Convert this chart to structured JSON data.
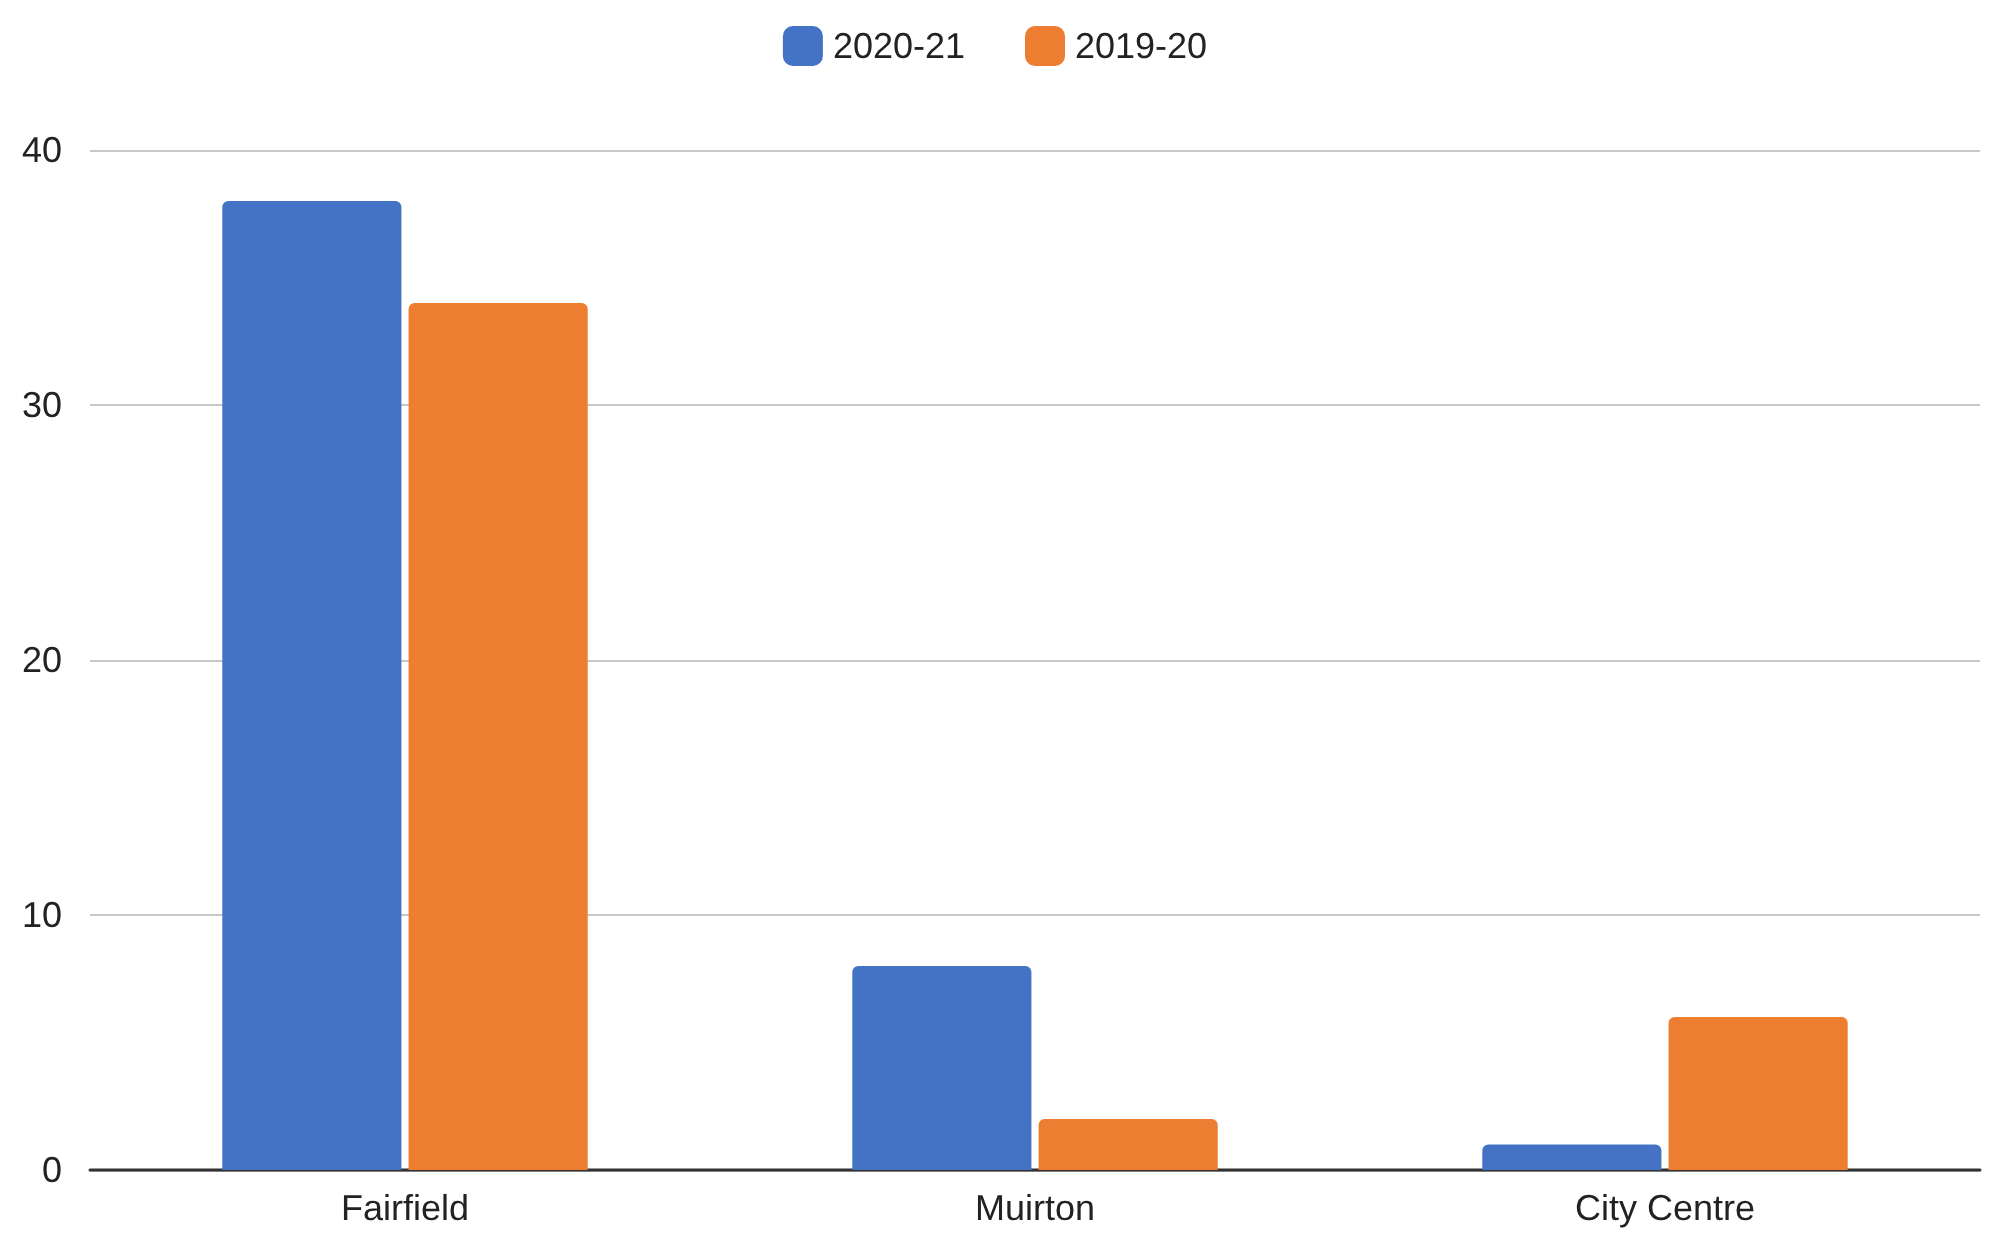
{
  "chart_data": {
    "type": "bar",
    "categories": [
      "Fairfield",
      "Muirton",
      "City Centre"
    ],
    "series": [
      {
        "name": "2020-21",
        "color": "#4472c4",
        "values": [
          38,
          8,
          1
        ]
      },
      {
        "name": "2019-20",
        "color": "#ed7d31",
        "values": [
          34,
          2,
          6
        ]
      }
    ],
    "ylim": [
      0,
      40
    ],
    "yticks": [
      0,
      10,
      20,
      30,
      40
    ],
    "grid": "y",
    "legend": "top"
  }
}
